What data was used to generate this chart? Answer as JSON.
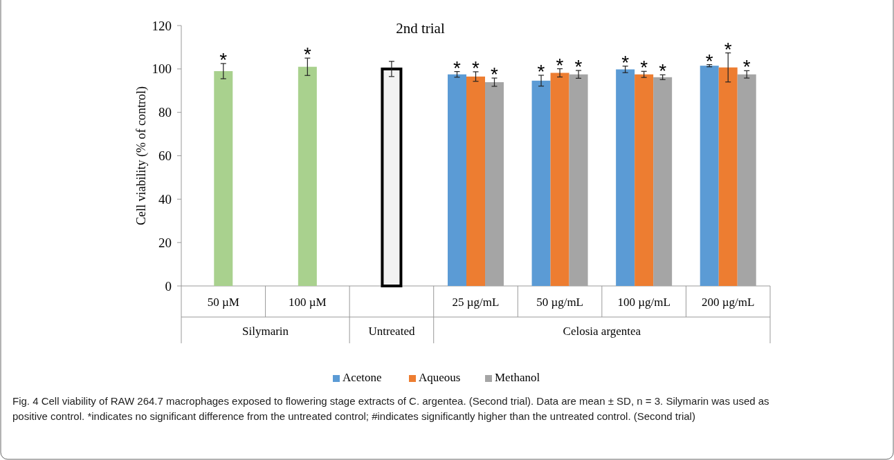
{
  "chart_data": {
    "type": "bar",
    "title": "2nd trial",
    "ylabel": "Cell viability (% of control)",
    "categories": [
      "50 µM",
      "100 µM",
      null,
      "25 µg/mL",
      "50 µg/mL",
      "100 µg/mL",
      "200 µg/mL"
    ],
    "series": [
      {
        "color": "#a9d18e",
        "values": [
          99,
          101,
          null,
          null,
          null,
          null,
          null
        ],
        "errors": [
          3.5,
          4,
          null,
          null,
          null,
          null,
          null
        ],
        "value_labels": [
          "*",
          "*",
          null,
          null,
          null,
          null,
          null
        ]
      },
      {
        "color": "#f2f2f2",
        "values": [
          null,
          null,
          100,
          null,
          null,
          null,
          null
        ],
        "errors": [
          null,
          null,
          3.5,
          null,
          null,
          null,
          null
        ]
      },
      {
        "name": "Acetone",
        "color": "#5b9bd5",
        "values": [
          null,
          null,
          null,
          97.5,
          94.6,
          99.8,
          101.5
        ],
        "errors": [
          null,
          null,
          null,
          1.3,
          2.5,
          1.5,
          0.5
        ],
        "value_labels": [
          null,
          null,
          null,
          "*",
          "*",
          "*",
          "*"
        ]
      },
      {
        "name": "Aqueous",
        "color": "#ed7d31",
        "values": [
          null,
          null,
          null,
          96.5,
          98.2,
          97.5,
          100.7
        ],
        "errors": [
          null,
          null,
          null,
          2.2,
          1.9,
          1.4,
          6.7
        ],
        "value_labels": [
          null,
          null,
          null,
          "*",
          "*",
          "*",
          "*"
        ]
      },
      {
        "name": "Methanol",
        "color": "#a5a5a5",
        "values": [
          null,
          null,
          null,
          93.9,
          97.5,
          96.2,
          97.5
        ],
        "errors": [
          null,
          null,
          null,
          1.9,
          1.8,
          1.1,
          1.7
        ],
        "value_labels": [
          null,
          null,
          null,
          "*",
          "*",
          "*",
          "*"
        ]
      }
    ],
    "ylim": [
      0,
      120
    ],
    "yticks": [
      0,
      20,
      40,
      60,
      80,
      100,
      120
    ],
    "grid": false,
    "legend": "bottom",
    "annotations": [
      "Silymarin",
      "Untreated",
      "Celosia argentea",
      "Fig. 4 Cell viability of RAW 264.7 macrophages exposed to flowering stage extracts of C. argentea. (Second trial). Data are mean ± SD, n = 3. Silymarin was used as positive control. *indicates no significant difference from the untreated control; #indicates significantly higher than the untreated control. (Second trial)"
    ]
  }
}
